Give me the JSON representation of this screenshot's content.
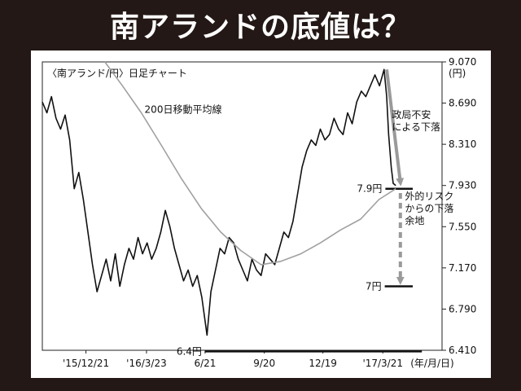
{
  "headline": "南アランドの底値は？",
  "chart_data": {
    "type": "line",
    "title": "〈南アランド/円〉日足チャート",
    "unit_label": "(円)",
    "x_axis_note": "(年/月/日)",
    "x_ticks": [
      {
        "date": "2015-12-21",
        "label": "'15/12/21"
      },
      {
        "date": "2016-03-23",
        "label": "'16/3/23"
      },
      {
        "date": "2016-06-21",
        "label": "6/21"
      },
      {
        "date": "2016-09-20",
        "label": "9/20"
      },
      {
        "date": "2016-12-19",
        "label": "12/19"
      },
      {
        "date": "2017-03-21",
        "label": "'17/3/21"
      }
    ],
    "y_ticks": [
      {
        "value": 9.07,
        "label": "9.070"
      },
      {
        "value": 8.69,
        "label": "8.690"
      },
      {
        "value": 8.31,
        "label": "8.310"
      },
      {
        "value": 7.93,
        "label": "7.930"
      },
      {
        "value": 7.55,
        "label": "7.550"
      },
      {
        "value": 7.17,
        "label": "7.170"
      },
      {
        "value": 6.79,
        "label": "6.790"
      },
      {
        "value": 6.41,
        "label": "6.410"
      }
    ],
    "ylim": [
      6.41,
      9.07
    ],
    "xlim": [
      "2015-10-15",
      "2017-06-20"
    ],
    "series": [
      {
        "name": "",
        "color": "#111111",
        "points": [
          [
            "2015-10-15",
            8.7
          ],
          [
            "2015-10-22",
            8.6
          ],
          [
            "2015-10-29",
            8.75
          ],
          [
            "2015-11-05",
            8.55
          ],
          [
            "2015-11-12",
            8.45
          ],
          [
            "2015-11-19",
            8.58
          ],
          [
            "2015-11-26",
            8.35
          ],
          [
            "2015-12-03",
            7.9
          ],
          [
            "2015-12-10",
            8.05
          ],
          [
            "2015-12-17",
            7.8
          ],
          [
            "2015-12-24",
            7.5
          ],
          [
            "2015-12-31",
            7.2
          ],
          [
            "2016-01-07",
            6.95
          ],
          [
            "2016-01-14",
            7.1
          ],
          [
            "2016-01-21",
            7.25
          ],
          [
            "2016-01-28",
            7.05
          ],
          [
            "2016-02-04",
            7.3
          ],
          [
            "2016-02-11",
            7.0
          ],
          [
            "2016-02-18",
            7.2
          ],
          [
            "2016-02-25",
            7.35
          ],
          [
            "2016-03-03",
            7.25
          ],
          [
            "2016-03-10",
            7.45
          ],
          [
            "2016-03-17",
            7.3
          ],
          [
            "2016-03-24",
            7.4
          ],
          [
            "2016-03-31",
            7.25
          ],
          [
            "2016-04-07",
            7.35
          ],
          [
            "2016-04-14",
            7.5
          ],
          [
            "2016-04-21",
            7.7
          ],
          [
            "2016-04-28",
            7.55
          ],
          [
            "2016-05-05",
            7.35
          ],
          [
            "2016-05-12",
            7.2
          ],
          [
            "2016-05-19",
            7.05
          ],
          [
            "2016-05-26",
            7.15
          ],
          [
            "2016-06-02",
            7.0
          ],
          [
            "2016-06-09",
            7.1
          ],
          [
            "2016-06-16",
            6.9
          ],
          [
            "2016-06-24",
            6.55
          ],
          [
            "2016-06-30",
            6.95
          ],
          [
            "2016-07-07",
            7.15
          ],
          [
            "2016-07-14",
            7.35
          ],
          [
            "2016-07-21",
            7.3
          ],
          [
            "2016-07-28",
            7.45
          ],
          [
            "2016-08-04",
            7.4
          ],
          [
            "2016-08-11",
            7.25
          ],
          [
            "2016-08-18",
            7.15
          ],
          [
            "2016-08-25",
            7.05
          ],
          [
            "2016-09-01",
            7.25
          ],
          [
            "2016-09-08",
            7.15
          ],
          [
            "2016-09-15",
            7.1
          ],
          [
            "2016-09-22",
            7.3
          ],
          [
            "2016-09-29",
            7.25
          ],
          [
            "2016-10-06",
            7.2
          ],
          [
            "2016-10-13",
            7.35
          ],
          [
            "2016-10-20",
            7.5
          ],
          [
            "2016-10-27",
            7.45
          ],
          [
            "2016-11-03",
            7.6
          ],
          [
            "2016-11-10",
            7.85
          ],
          [
            "2016-11-17",
            8.1
          ],
          [
            "2016-11-24",
            8.25
          ],
          [
            "2016-12-01",
            8.35
          ],
          [
            "2016-12-08",
            8.3
          ],
          [
            "2016-12-15",
            8.45
          ],
          [
            "2016-12-22",
            8.35
          ],
          [
            "2016-12-29",
            8.4
          ],
          [
            "2017-01-05",
            8.55
          ],
          [
            "2017-01-12",
            8.45
          ],
          [
            "2017-01-19",
            8.4
          ],
          [
            "2017-01-26",
            8.6
          ],
          [
            "2017-02-02",
            8.5
          ],
          [
            "2017-02-09",
            8.7
          ],
          [
            "2017-02-16",
            8.8
          ],
          [
            "2017-02-23",
            8.75
          ],
          [
            "2017-03-02",
            8.85
          ],
          [
            "2017-03-09",
            8.95
          ],
          [
            "2017-03-16",
            8.85
          ],
          [
            "2017-03-23",
            9.0
          ],
          [
            "2017-03-27",
            8.75
          ],
          [
            "2017-03-30",
            8.4
          ],
          [
            "2017-04-03",
            8.1
          ],
          [
            "2017-04-06",
            7.95
          ],
          [
            "2017-04-10",
            7.93
          ]
        ]
      },
      {
        "name": "200日移動平均線",
        "color": "#a0a0a0",
        "points": [
          [
            "2016-01-19",
            9.07
          ],
          [
            "2016-02-15",
            8.85
          ],
          [
            "2016-03-15",
            8.6
          ],
          [
            "2016-04-15",
            8.3
          ],
          [
            "2016-05-15",
            8.0
          ],
          [
            "2016-06-15",
            7.72
          ],
          [
            "2016-07-15",
            7.5
          ],
          [
            "2016-08-15",
            7.33
          ],
          [
            "2016-09-15",
            7.2
          ],
          [
            "2016-10-15",
            7.23
          ],
          [
            "2016-11-15",
            7.3
          ],
          [
            "2016-12-15",
            7.4
          ],
          [
            "2017-01-15",
            7.52
          ],
          [
            "2017-02-15",
            7.62
          ],
          [
            "2017-03-15",
            7.8
          ],
          [
            "2017-04-10",
            7.9
          ]
        ]
      }
    ],
    "levels": [
      {
        "value": 7.9,
        "label": "7.9円"
      },
      {
        "value": 7.0,
        "label": "7円"
      },
      {
        "value": 6.4,
        "label": "6.4円"
      }
    ],
    "annotations": [
      {
        "lines": [
          "政局不安",
          "による下落"
        ]
      },
      {
        "lines": [
          "外的リスク",
          "からの下落",
          "余地"
        ]
      }
    ]
  }
}
